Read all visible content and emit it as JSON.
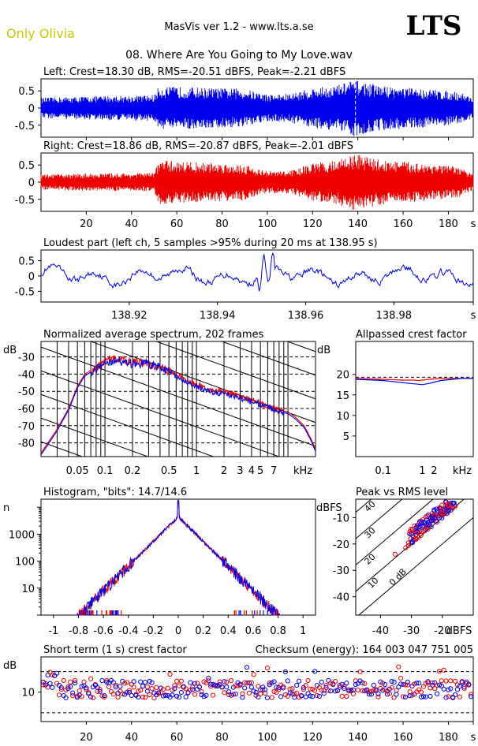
{
  "header": {
    "artist": "Only Olivia",
    "app": "MasVis ver 1.2 - www.lts.a.se",
    "logo": "LTS",
    "file": "08. Where Are You Going to My Love.wav"
  },
  "colors": {
    "left": "#0000ee",
    "right": "#ee0000",
    "artist": "#c8c800",
    "grid": "#000000"
  },
  "chart_data": [
    {
      "type": "line",
      "id": "left",
      "title": "Left: Crest=18.30 dB, RMS=-20.51 dBFS, Peak=-2.21 dBFS",
      "yticks": [
        "0.5",
        "0",
        "-0.5"
      ],
      "ylim": [
        -0.85,
        0.85
      ],
      "duration_s": 191,
      "marker_s": 138.95,
      "envelope": {
        "x": [
          0,
          10,
          20,
          30,
          40,
          50,
          52,
          60,
          70,
          80,
          90,
          100,
          110,
          120,
          130,
          138,
          145,
          150,
          160,
          170,
          180,
          186,
          191
        ],
        "amp": [
          0.3,
          0.32,
          0.34,
          0.36,
          0.36,
          0.38,
          0.62,
          0.62,
          0.6,
          0.58,
          0.56,
          0.4,
          0.42,
          0.58,
          0.66,
          0.82,
          0.72,
          0.66,
          0.6,
          0.56,
          0.5,
          0.45,
          0.3
        ]
      }
    },
    {
      "type": "line",
      "id": "right",
      "title": "Right: Crest=18.86 dB, RMS=-20.87 dBFS, Peak=-2.01 dBFS",
      "yticks": [
        "0.5",
        "0",
        "-0.5"
      ],
      "ylim": [
        -0.85,
        0.85
      ],
      "xticks": [
        "20",
        "40",
        "60",
        "80",
        "100",
        "120",
        "140",
        "160",
        "180",
        "s"
      ],
      "envelope": {
        "x": [
          0,
          10,
          20,
          30,
          40,
          50,
          52,
          60,
          70,
          80,
          90,
          100,
          110,
          120,
          130,
          138,
          145,
          150,
          160,
          170,
          180,
          186,
          191
        ],
        "amp": [
          0.22,
          0.24,
          0.25,
          0.26,
          0.26,
          0.28,
          0.64,
          0.62,
          0.58,
          0.55,
          0.52,
          0.32,
          0.34,
          0.55,
          0.64,
          0.82,
          0.74,
          0.66,
          0.6,
          0.55,
          0.48,
          0.42,
          0.22
        ]
      }
    },
    {
      "type": "line",
      "id": "loudest",
      "title": "Loudest part (left  ch, 5 samples >95% during 20 ms at 138.95 s)",
      "yticks": [
        "0.5",
        "0",
        "-0.5"
      ],
      "ylim": [
        -0.85,
        0.85
      ],
      "xlim": [
        138.9,
        138.998
      ],
      "xticks": [
        "138.92",
        "138.94",
        "138.96",
        "138.98",
        "s"
      ]
    },
    {
      "type": "line",
      "id": "spectrum",
      "title": "Normalized average spectrum, 202 frames",
      "ylabel": "dB",
      "yticks": [
        "-30",
        "-40",
        "-50",
        "-60",
        "-70",
        "-80"
      ],
      "ylim": [
        -88,
        -21
      ],
      "xlim_khz": [
        0.02,
        20
      ],
      "xticks": [
        "0.05",
        "0.1",
        "0.2",
        "0.5",
        "1",
        "2",
        "3",
        "4",
        "5",
        "7",
        "kHz"
      ],
      "series": [
        {
          "color": "red",
          "x": [
            0.02,
            0.03,
            0.04,
            0.05,
            0.06,
            0.08,
            0.1,
            0.13,
            0.2,
            0.3,
            0.5,
            0.7,
            1,
            1.5,
            2,
            3,
            4,
            5,
            6,
            7,
            8,
            10,
            12,
            15,
            18,
            20
          ],
          "y": [
            -86,
            -72,
            -60,
            -47,
            -40,
            -36,
            -33,
            -31,
            -33,
            -34,
            -38,
            -42,
            -46,
            -50,
            -50,
            -53,
            -55,
            -57,
            -59,
            -60,
            -61,
            -62,
            -65,
            -70,
            -78,
            -84
          ]
        },
        {
          "color": "blue",
          "x": [
            0.02,
            0.03,
            0.04,
            0.05,
            0.06,
            0.08,
            0.1,
            0.13,
            0.2,
            0.3,
            0.5,
            0.7,
            1,
            1.5,
            2,
            3,
            4,
            5,
            6,
            7,
            8,
            10,
            12,
            15,
            18,
            20
          ],
          "y": [
            -87,
            -73,
            -61,
            -48,
            -41,
            -37,
            -34,
            -32,
            -34,
            -34,
            -38,
            -43,
            -47,
            -51,
            -51,
            -54,
            -56,
            -58,
            -59,
            -61,
            -62,
            -63,
            -66,
            -71,
            -79,
            -85
          ]
        }
      ]
    },
    {
      "type": "line",
      "id": "allpassed",
      "title": "Allpassed crest factor",
      "ylabel": "dB",
      "yticks": [
        "20",
        "15",
        "10",
        "5"
      ],
      "ylim": [
        0,
        28
      ],
      "xticks": [
        "0.1",
        "1",
        "2",
        "kHz"
      ],
      "series": [
        {
          "color": "red",
          "x": [
            0.02,
            0.1,
            0.3,
            0.6,
            0.8,
            1,
            1.5,
            3,
            6,
            10,
            20
          ],
          "y": [
            19,
            18.8,
            18.6,
            18.6,
            18.5,
            18.6,
            18.8,
            19,
            19,
            19,
            19
          ]
        },
        {
          "color": "blue",
          "x": [
            0.02,
            0.1,
            0.3,
            0.6,
            0.8,
            1,
            1.5,
            3,
            6,
            10,
            20
          ],
          "y": [
            18.8,
            18.5,
            18,
            17.7,
            17.6,
            17.5,
            17.8,
            18.5,
            18.8,
            19,
            19
          ]
        }
      ]
    },
    {
      "type": "line",
      "id": "histogram",
      "title": "Histogram, \"bits\": 14.7/14.6",
      "ylabel": "n",
      "yticks": [
        "1000",
        "100",
        "10"
      ],
      "xticks": [
        "-1",
        "-0.8",
        "-0.6",
        "-0.4",
        "-0.2",
        "0",
        "0.2",
        "0.4",
        "0.6",
        "0.8",
        "1"
      ],
      "xlim": [
        -1.1,
        1.1
      ]
    },
    {
      "type": "scatter",
      "id": "peakrms",
      "title": "Peak vs RMS level",
      "ylabel": "dBFS",
      "xlabel": "dBFS",
      "yticks": [
        "-10",
        "-20",
        "-30",
        "-40"
      ],
      "xticks": [
        "-40",
        "-30",
        "-20"
      ],
      "xlim": [
        -48,
        -10
      ],
      "ylim": [
        -47,
        -3
      ],
      "diagonals": [
        "40",
        "30",
        "20",
        "10",
        "0 dB"
      ]
    },
    {
      "type": "scatter",
      "id": "crest",
      "title": "Short term (1 s) crest factor",
      "checksum": "Checksum (energy):   164 003 047 751 005",
      "ylabel": "dB",
      "yticks": [
        "10"
      ],
      "xticks": [
        "20",
        "40",
        "60",
        "80",
        "100",
        "120",
        "140",
        "160",
        "180",
        "s"
      ],
      "xlim": [
        0,
        191
      ],
      "ylim": [
        5,
        16
      ]
    }
  ]
}
